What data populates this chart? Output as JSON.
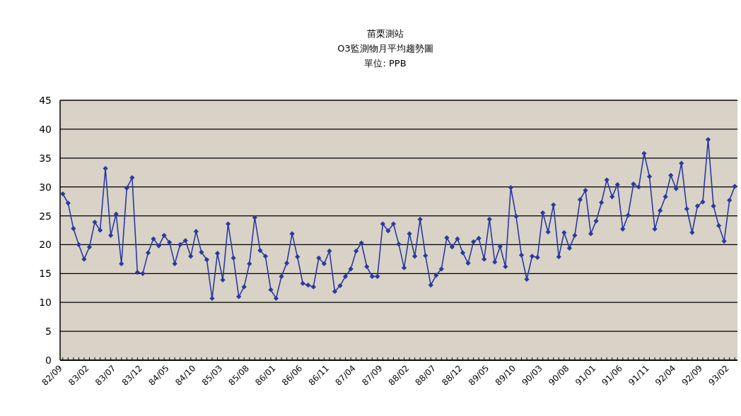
{
  "chart_data": {
    "type": "line",
    "title": "苗栗測站",
    "subtitle": "O3監測物月平均趨勢圖",
    "annotations": [
      "單位: PPB"
    ],
    "categories": [
      "82/09",
      null,
      null,
      null,
      null,
      "83/02",
      null,
      null,
      null,
      null,
      "83/07",
      null,
      null,
      null,
      null,
      "83/12",
      null,
      null,
      null,
      null,
      "84/05",
      null,
      null,
      null,
      null,
      "84/10",
      null,
      null,
      null,
      null,
      "85/03",
      null,
      null,
      null,
      null,
      "85/08",
      null,
      null,
      null,
      null,
      "86/01",
      null,
      null,
      null,
      null,
      "86/06",
      null,
      null,
      null,
      null,
      "86/11",
      null,
      null,
      null,
      null,
      "87/04",
      null,
      null,
      null,
      null,
      "87/09",
      null,
      null,
      null,
      null,
      "88/02",
      null,
      null,
      null,
      null,
      "88/07",
      null,
      null,
      null,
      null,
      "88/12",
      null,
      null,
      null,
      null,
      "89/05",
      null,
      null,
      null,
      null,
      "89/10",
      null,
      null,
      null,
      null,
      "90/03",
      null,
      null,
      null,
      null,
      "90/08",
      null,
      null,
      null,
      null,
      "91/01",
      null,
      null,
      null,
      null,
      "91/06",
      null,
      null,
      null,
      null,
      "91/11",
      null,
      null,
      null,
      null,
      "92/04",
      null,
      null,
      null,
      null,
      "92/09",
      null,
      null,
      null,
      null,
      "93/02",
      null
    ],
    "series": [
      {
        "color": "#2b3a9e",
        "values": [
          28.8,
          27.2,
          22.8,
          20.0,
          17.5,
          19.6,
          23.9,
          22.5,
          33.2,
          21.6,
          25.3,
          16.7,
          29.8,
          31.6,
          15.2,
          15.0,
          18.6,
          21.0,
          19.8,
          21.6,
          20.4,
          16.7,
          20.0,
          20.7,
          18.0,
          22.3,
          18.7,
          17.4,
          10.7,
          18.5,
          13.9,
          23.6,
          17.7,
          11.0,
          12.7,
          16.7,
          24.7,
          19.0,
          18.0,
          12.2,
          10.7,
          14.5,
          16.8,
          21.9,
          17.9,
          13.3,
          13.0,
          12.7,
          17.7,
          16.7,
          18.9,
          11.9,
          12.9,
          14.5,
          15.8,
          18.9,
          20.3,
          16.2,
          14.5,
          14.5,
          23.6,
          22.4,
          23.6,
          20.1,
          16.0,
          21.9,
          18.0,
          24.4,
          18.1,
          13.0,
          14.7,
          15.8,
          21.2,
          19.6,
          21.0,
          18.6,
          16.8,
          20.5,
          21.1,
          17.5,
          24.4,
          17.0,
          19.7,
          16.2,
          29.9,
          24.9,
          18.2,
          14.0,
          18.0,
          17.8,
          25.5,
          22.2,
          26.9,
          17.9,
          22.1,
          19.4,
          21.6,
          27.8,
          29.4,
          21.9,
          24.1,
          27.3,
          31.2,
          28.3,
          30.4,
          22.7,
          25.1,
          30.5,
          30.0,
          35.8,
          31.8,
          22.7,
          25.9,
          28.3,
          32.0,
          29.7,
          34.1,
          26.2,
          22.1,
          26.7,
          27.4,
          38.2,
          26.7,
          23.3,
          20.6,
          27.7,
          30.1
        ]
      }
    ],
    "ylim": [
      0,
      45
    ],
    "yticks": [
      0,
      5,
      10,
      15,
      20,
      25,
      30,
      35,
      40,
      45
    ],
    "grid": "y",
    "marker": "diamond",
    "line_style": "solid"
  }
}
